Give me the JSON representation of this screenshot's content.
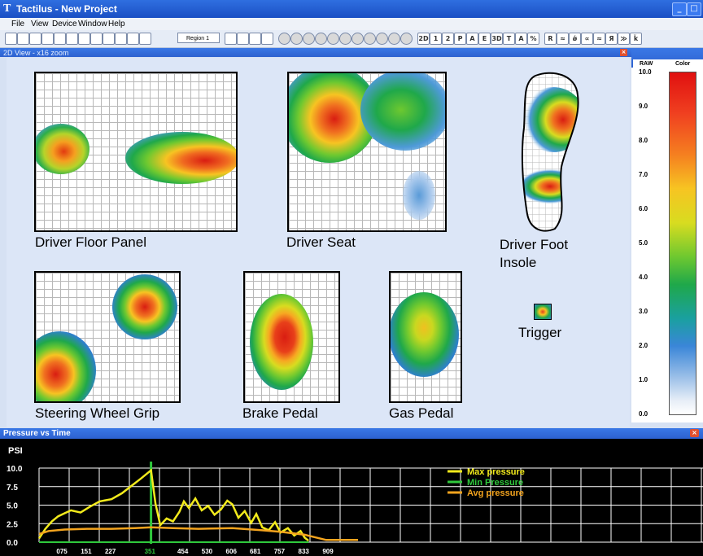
{
  "window": {
    "app_icon": "T",
    "title": "Tactilus - New Project",
    "min_glyph": "_",
    "max_glyph": "□"
  },
  "menu": [
    "File",
    "View",
    "Device",
    "Window",
    "Help"
  ],
  "toolbar": {
    "region_label": "Region 1",
    "icons": [
      "new-file-icon",
      "open-file-icon",
      "save-icon",
      "stop-icon",
      "pointer-icon",
      "pencil-icon",
      "ellipse-icon",
      "rectangle-select-icon",
      "hand-icon",
      "brush-icon",
      "lasso-icon",
      "eraser-icon"
    ],
    "view_icons": [
      "grid-icon",
      "2d-view-icon",
      "3d-view-icon",
      "contour-icon"
    ],
    "frame_buttons": [
      "circle-1",
      "circle-2",
      "circle-3",
      "circle-4",
      "circle-5",
      "circle-6",
      "circle-7",
      "circle-8",
      "circle-9",
      "circle-10",
      "circle-11"
    ],
    "mode_labels": [
      "2D",
      "1",
      "2",
      "P",
      "A",
      "E",
      "3D",
      "T",
      "A",
      "%"
    ],
    "tool_labels": [
      "R",
      "≈",
      "ǿ",
      "∝",
      "≈",
      "Я",
      "≫",
      "ǩ"
    ]
  },
  "view": {
    "header": "2D View - x16 zoom",
    "panels": {
      "floor": "Driver Floor Panel",
      "seat": "Driver Seat",
      "insole_line1": "Driver Foot",
      "insole_line2": "Insole",
      "steering": "Steering Wheel Grip",
      "brake": "Brake Pedal",
      "gas": "Gas Pedal",
      "trigger": "Trigger"
    }
  },
  "scale": {
    "raw_label": "RAW",
    "color_label": "Color",
    "ticks": [
      "10.0",
      "9.0",
      "8.0",
      "7.0",
      "6.0",
      "5.0",
      "4.0",
      "3.0",
      "2.0",
      "1.0",
      "0.0"
    ],
    "max_color": "#e01010",
    "min_color": "#ffffff"
  },
  "graph": {
    "title": "Pressure vs Time",
    "y_unit": "PSI",
    "y_ticks": [
      "10.0",
      "7.5",
      "5.0",
      "2.5",
      "0.0"
    ],
    "x_ticks": [
      "075",
      "151",
      "227",
      "351",
      "454",
      "530",
      "606",
      "681",
      "757",
      "833",
      "909"
    ],
    "highlight_tick": "351",
    "legend": [
      {
        "label": "Max pressure",
        "color": "#f2ea1c"
      },
      {
        "label": "Min Pressure",
        "color": "#2fc83c"
      },
      {
        "label": "Avg pressure",
        "color": "#f4a41e"
      }
    ]
  },
  "chart_data": {
    "type": "line",
    "title": "Pressure vs Time",
    "ylabel": "PSI",
    "xlabel": "",
    "ylim": [
      0,
      10
    ],
    "xlim": [
      0,
      1000
    ],
    "grid": true,
    "legend_position": "top-right",
    "marker_x": 351,
    "series": [
      {
        "name": "Max pressure",
        "x": [
          0,
          20,
          40,
          60,
          80,
          100,
          130,
          160,
          190,
          227,
          260,
          290,
          320,
          351,
          365,
          380,
          400,
          420,
          440,
          454,
          470,
          490,
          510,
          530,
          550,
          570,
          590,
          606,
          625,
          645,
          665,
          681,
          700,
          720,
          740,
          757,
          780,
          800,
          820,
          833,
          845
        ],
        "y": [
          0.5,
          1.8,
          2.8,
          3.5,
          3.9,
          4.3,
          4.0,
          4.8,
          5.5,
          5.8,
          6.6,
          7.6,
          8.6,
          9.7,
          5.2,
          2.3,
          3.2,
          2.8,
          4.1,
          5.5,
          4.6,
          5.9,
          4.3,
          4.9,
          3.7,
          4.4,
          5.6,
          5.1,
          3.3,
          4.2,
          2.6,
          3.8,
          2.0,
          1.6,
          2.7,
          1.3,
          1.9,
          0.9,
          1.5,
          0.6,
          0.2
        ]
      },
      {
        "name": "Min Pressure",
        "x": [
          0,
          845
        ],
        "y": [
          0.0,
          0.0
        ]
      },
      {
        "name": "Avg pressure",
        "x": [
          0,
          30,
          80,
          150,
          227,
          300,
          351,
          420,
          500,
          606,
          700,
          757,
          833,
          900,
          1000
        ],
        "y": [
          1.1,
          1.5,
          1.7,
          1.8,
          1.8,
          1.9,
          2.0,
          1.9,
          1.8,
          1.9,
          1.6,
          1.4,
          1.0,
          0.3,
          0.3
        ]
      }
    ]
  }
}
